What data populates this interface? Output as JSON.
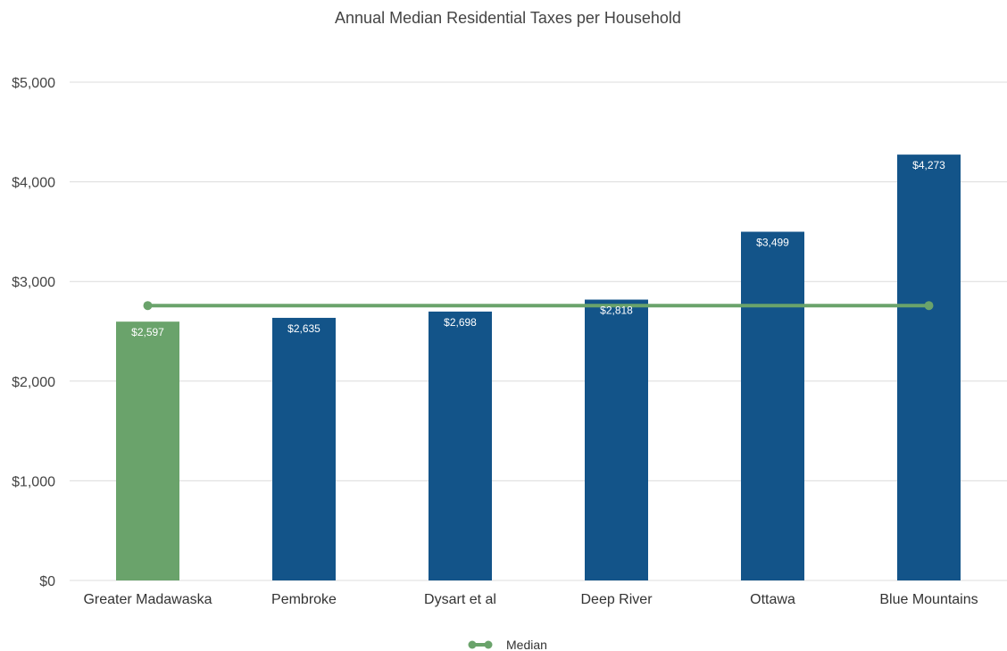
{
  "chart_data": {
    "type": "bar",
    "title": "Annual Median Residential Taxes per Household",
    "categories": [
      "Greater Madawaska",
      "Pembroke",
      "Dysart et al",
      "Deep River",
      "Ottawa",
      "Blue Mountains"
    ],
    "values": [
      2597,
      2635,
      2698,
      2818,
      3499,
      4273
    ],
    "value_labels": [
      "$2,597",
      "$2,635",
      "$2,698",
      "$2,818",
      "$3,499",
      "$4,273"
    ],
    "highlight_index": 0,
    "colors": {
      "highlight": "#6aa36b",
      "bars": "#135489",
      "median_line": "#6aa36b"
    },
    "yticks": [
      "$0",
      "$1,000",
      "$2,000",
      "$3,000",
      "$4,000",
      "$5,000"
    ],
    "ylim": [
      0,
      5000
    ],
    "grid": true,
    "xlabel": "",
    "ylabel": "",
    "median": {
      "name": "Median",
      "value": 2758
    },
    "legend": {
      "position": "bottom",
      "entries": [
        "Median"
      ]
    }
  }
}
